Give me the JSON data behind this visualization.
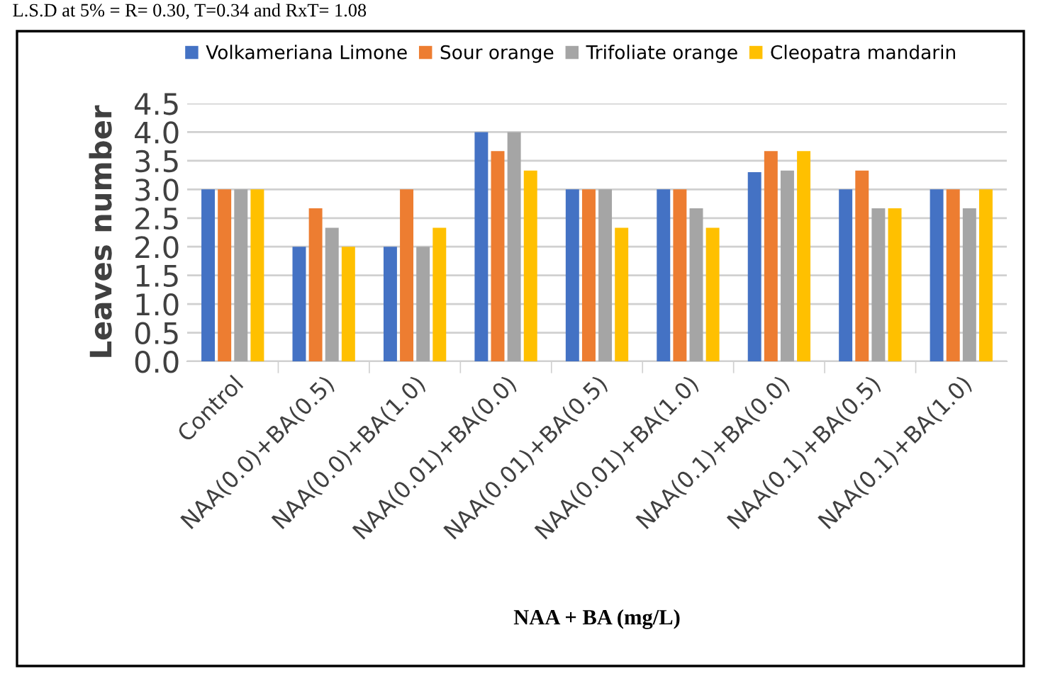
{
  "chart_data": {
    "type": "bar",
    "categories": [
      "Control",
      "NAA(0.0)+BA(0.5)",
      "NAA(0.0)+BA(1.0)",
      "NAA(0.01)+BA(0.0)",
      "NAA(0.01)+BA(0.5)",
      "NAA(0.01)+BA(1.0)",
      "NAA(0.1)+BA(0.0)",
      "NAA(0.1)+BA(0.5)",
      "NAA(0.1)+BA(1.0)"
    ],
    "series": [
      {
        "name": "Volkameriana Limone",
        "color": "#4472c4",
        "values": [
          3.0,
          2.0,
          2.0,
          4.0,
          3.0,
          3.0,
          3.3,
          3.0,
          3.0
        ]
      },
      {
        "name": "Sour orange",
        "color": "#ed7d31",
        "values": [
          3.0,
          2.67,
          3.0,
          3.67,
          3.0,
          3.0,
          3.67,
          3.33,
          3.0
        ]
      },
      {
        "name": "Trifoliate orange",
        "color": "#a5a5a5",
        "values": [
          3.0,
          2.33,
          2.0,
          4.0,
          3.0,
          2.67,
          3.33,
          2.67,
          2.67
        ]
      },
      {
        "name": "Cleopatra mandarin",
        "color": "#ffc000",
        "values": [
          3.0,
          2.0,
          2.33,
          3.33,
          2.33,
          2.33,
          3.67,
          2.67,
          3.0
        ]
      }
    ],
    "ylim": [
      0,
      4.5
    ],
    "yticks": [
      {
        "value": 0,
        "label": "0.0"
      },
      {
        "value": 0.5,
        "label": "0.5"
      },
      {
        "value": 1,
        "label": "1.0"
      },
      {
        "value": 1.5,
        "label": "1.5"
      },
      {
        "value": 2,
        "label": "2.0"
      },
      {
        "value": 2.5,
        "label": "2.5"
      },
      {
        "value": 3,
        "label": "3.0"
      },
      {
        "value": 3.5,
        "label": "3.5"
      },
      {
        "value": 4,
        "label": "4.0"
      },
      {
        "value": 4.5,
        "label": "4.5"
      }
    ],
    "ylabel": "Leaves number",
    "xlabel": "NAA + BA (mg/L)",
    "annotations": [
      "L.S.D at 5% = R= 0.30, T=0.34 and RxT= 1.08"
    ],
    "grid": "y",
    "legend": "top"
  }
}
